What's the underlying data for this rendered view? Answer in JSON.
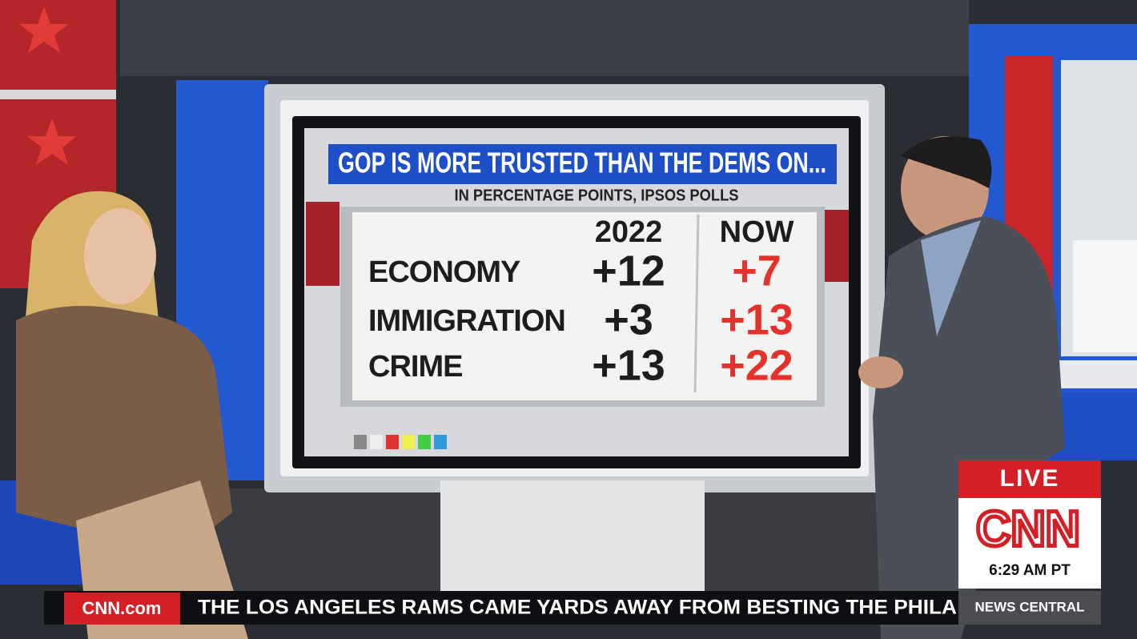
{
  "screen": {
    "title": "GOP IS MORE TRUSTED THAN THE DEMS ON...",
    "subtitle": "IN PERCENTAGE POINTS, IPSOS POLLS",
    "table": {
      "header": [
        "2022",
        "NOW"
      ],
      "rows": [
        [
          "ECONOMY",
          "+12",
          "+7"
        ],
        [
          "IMMIGRATION",
          "+3",
          "+13"
        ],
        [
          "CRIME",
          "+13",
          "+22"
        ]
      ]
    }
  },
  "bug": {
    "live": "LIVE",
    "logo": "CNN",
    "time": "6:29 AM PT",
    "network": "NEWS CENTRAL"
  },
  "ticker": {
    "logo": "CNN.com",
    "text": "THE LOS ANGELES RAMS CAME YARDS AWAY FROM BESTING THE PHILA"
  }
}
